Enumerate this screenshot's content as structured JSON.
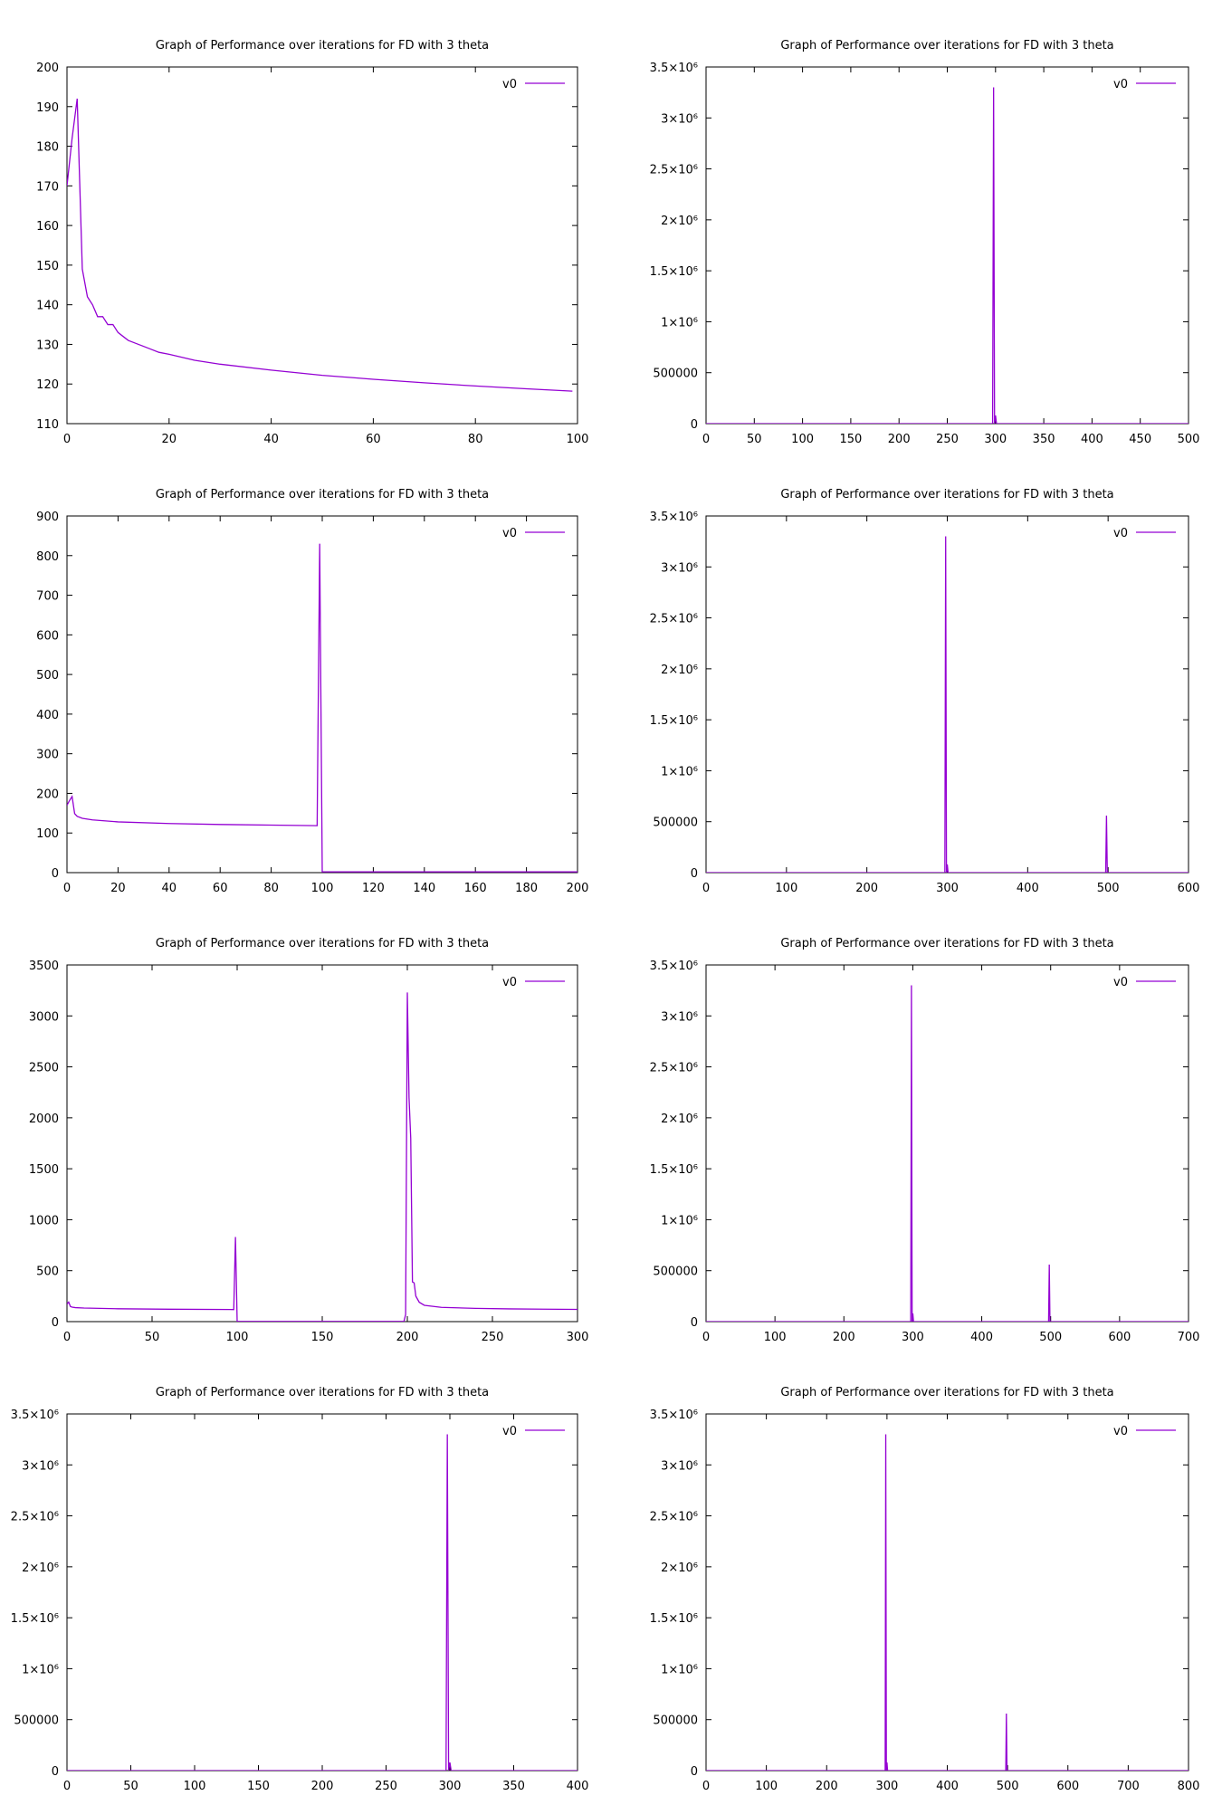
{
  "chart_data": [
    {
      "type": "line",
      "title": "Graph of Performance over iterations for FD with 3 theta",
      "xlabel": "",
      "ylabel": "",
      "xlim": [
        0,
        100
      ],
      "ylim": [
        110,
        200
      ],
      "xticks": [
        0,
        20,
        40,
        60,
        80,
        100
      ],
      "yticks": [
        110,
        120,
        130,
        140,
        150,
        160,
        170,
        180,
        190,
        200
      ],
      "ytick_labels": [
        "110",
        "120",
        "130",
        "140",
        "150",
        "160",
        "170",
        "180",
        "190",
        "200"
      ],
      "grid": false,
      "legend_position": "top-right",
      "series": [
        {
          "name": "v0",
          "color": "#9400d3",
          "x": [
            0,
            1,
            2,
            3,
            4,
            5,
            6,
            7,
            8,
            9,
            10,
            11,
            12,
            14,
            16,
            18,
            20,
            25,
            30,
            40,
            50,
            60,
            70,
            80,
            90,
            99
          ],
          "y": [
            170,
            182,
            192,
            149,
            142,
            140,
            137,
            137,
            135,
            135,
            133,
            132,
            131,
            130,
            129,
            128,
            127.5,
            126,
            125,
            123.5,
            122.2,
            121.2,
            120.3,
            119.5,
            118.8,
            118.2
          ]
        }
      ]
    },
    {
      "type": "line",
      "title": "Graph of Performance over iterations for FD with 3 theta",
      "xlabel": "",
      "ylabel": "",
      "xlim": [
        0,
        500
      ],
      "ylim": [
        0,
        3500000
      ],
      "xticks": [
        0,
        50,
        100,
        150,
        200,
        250,
        300,
        350,
        400,
        450,
        500
      ],
      "yticks": [
        0,
        500000,
        1000000,
        1500000,
        2000000,
        2500000,
        3000000,
        3500000
      ],
      "ytick_labels": [
        "0",
        "500000",
        "1×10⁶",
        "1.5×10⁶",
        "2×10⁶",
        "2.5×10⁶",
        "3×10⁶",
        "3.5×10⁶"
      ],
      "grid": false,
      "legend_position": "top-right",
      "series": [
        {
          "name": "v0",
          "color": "#9400d3",
          "x": [
            0,
            297,
            298,
            299,
            300,
            301,
            500
          ],
          "y": [
            200,
            200,
            3300000,
            500,
            80000,
            200,
            200
          ]
        }
      ]
    },
    {
      "type": "line",
      "title": "Graph of Performance over iterations for FD with 3 theta",
      "xlabel": "",
      "ylabel": "",
      "xlim": [
        0,
        200
      ],
      "ylim": [
        0,
        900
      ],
      "xticks": [
        0,
        20,
        40,
        60,
        80,
        100,
        120,
        140,
        160,
        180,
        200
      ],
      "yticks": [
        0,
        100,
        200,
        300,
        400,
        500,
        600,
        700,
        800,
        900
      ],
      "ytick_labels": [
        "0",
        "100",
        "200",
        "300",
        "400",
        "500",
        "600",
        "700",
        "800",
        "900"
      ],
      "grid": false,
      "legend_position": "top-right",
      "series": [
        {
          "name": "v0",
          "color": "#9400d3",
          "x": [
            0,
            1,
            2,
            3,
            4,
            6,
            10,
            20,
            40,
            60,
            80,
            98,
            99,
            100,
            200
          ],
          "y": [
            170,
            182,
            192,
            149,
            142,
            137,
            133,
            128,
            124,
            121.5,
            120,
            118.5,
            830,
            2,
            2
          ]
        }
      ]
    },
    {
      "type": "line",
      "title": "Graph of Performance over iterations for FD with 3 theta",
      "xlabel": "",
      "ylabel": "",
      "xlim": [
        0,
        600
      ],
      "ylim": [
        0,
        3500000
      ],
      "xticks": [
        0,
        100,
        200,
        300,
        400,
        500,
        600
      ],
      "yticks": [
        0,
        500000,
        1000000,
        1500000,
        2000000,
        2500000,
        3000000,
        3500000
      ],
      "ytick_labels": [
        "0",
        "500000",
        "1×10⁶",
        "1.5×10⁶",
        "2×10⁶",
        "2.5×10⁶",
        "3×10⁶",
        "3.5×10⁶"
      ],
      "grid": false,
      "legend_position": "top-right",
      "series": [
        {
          "name": "v0",
          "color": "#9400d3",
          "x": [
            0,
            297,
            298,
            299,
            300,
            301,
            497,
            498,
            499,
            500,
            600
          ],
          "y": [
            200,
            200,
            3300000,
            500,
            80000,
            200,
            200,
            560000,
            200,
            100,
            100
          ]
        }
      ]
    },
    {
      "type": "line",
      "title": "Graph of Performance over iterations for FD with 3 theta",
      "xlabel": "",
      "ylabel": "",
      "xlim": [
        0,
        300
      ],
      "ylim": [
        0,
        3500
      ],
      "xticks": [
        0,
        50,
        100,
        150,
        200,
        250,
        300
      ],
      "yticks": [
        0,
        500,
        1000,
        1500,
        2000,
        2500,
        3000,
        3500
      ],
      "ytick_labels": [
        "0",
        "500",
        "1000",
        "1500",
        "2000",
        "2500",
        "3000",
        "3500"
      ],
      "grid": false,
      "legend_position": "top-right",
      "series": [
        {
          "name": "v0",
          "color": "#9400d3",
          "x": [
            0,
            1,
            2,
            3,
            5,
            10,
            30,
            60,
            98,
            99,
            100,
            198,
            199,
            200,
            201,
            202,
            203,
            204,
            205,
            207,
            210,
            220,
            240,
            260,
            280,
            300
          ],
          "y": [
            170,
            192,
            149,
            142,
            137,
            133,
            126,
            121.5,
            118.5,
            830,
            2,
            2,
            70,
            3230,
            2200,
            1800,
            390,
            380,
            250,
            190,
            160,
            140,
            130,
            125,
            122,
            120
          ]
        }
      ]
    },
    {
      "type": "line",
      "title": "Graph of Performance over iterations for FD with 3 theta",
      "xlabel": "",
      "ylabel": "",
      "xlim": [
        0,
        700
      ],
      "ylim": [
        0,
        3500000
      ],
      "xticks": [
        0,
        100,
        200,
        300,
        400,
        500,
        600,
        700
      ],
      "yticks": [
        0,
        500000,
        1000000,
        1500000,
        2000000,
        2500000,
        3000000,
        3500000
      ],
      "ytick_labels": [
        "0",
        "500000",
        "1×10⁶",
        "1.5×10⁶",
        "2×10⁶",
        "2.5×10⁶",
        "3×10⁶",
        "3.5×10⁶"
      ],
      "grid": false,
      "legend_position": "top-right",
      "series": [
        {
          "name": "v0",
          "color": "#9400d3",
          "x": [
            0,
            297,
            298,
            299,
            300,
            301,
            497,
            498,
            499,
            500,
            700
          ],
          "y": [
            200,
            200,
            3300000,
            500,
            80000,
            200,
            200,
            560000,
            200,
            100,
            100
          ]
        }
      ]
    },
    {
      "type": "line",
      "title": "Graph of Performance over iterations for FD with 3 theta",
      "xlabel": "",
      "ylabel": "",
      "xlim": [
        0,
        400
      ],
      "ylim": [
        0,
        3500000
      ],
      "xticks": [
        0,
        50,
        100,
        150,
        200,
        250,
        300,
        350,
        400
      ],
      "yticks": [
        0,
        500000,
        1000000,
        1500000,
        2000000,
        2500000,
        3000000,
        3500000
      ],
      "ytick_labels": [
        "0",
        "500000",
        "1×10⁶",
        "1.5×10⁶",
        "2×10⁶",
        "2.5×10⁶",
        "3×10⁶",
        "3.5×10⁶"
      ],
      "grid": false,
      "legend_position": "top-right",
      "series": [
        {
          "name": "v0",
          "color": "#9400d3",
          "x": [
            0,
            297,
            298,
            299,
            300,
            301,
            400
          ],
          "y": [
            200,
            200,
            3300000,
            500,
            80000,
            200,
            200
          ]
        }
      ]
    },
    {
      "type": "line",
      "title": "Graph of Performance over iterations for FD with 3 theta",
      "xlabel": "",
      "ylabel": "",
      "xlim": [
        0,
        800
      ],
      "ylim": [
        0,
        3500000
      ],
      "xticks": [
        0,
        100,
        200,
        300,
        400,
        500,
        600,
        700,
        800
      ],
      "yticks": [
        0,
        500000,
        1000000,
        1500000,
        2000000,
        2500000,
        3000000,
        3500000
      ],
      "ytick_labels": [
        "0",
        "500000",
        "1×10⁶",
        "1.5×10⁶",
        "2×10⁶",
        "2.5×10⁶",
        "3×10⁶",
        "3.5×10⁶"
      ],
      "grid": false,
      "legend_position": "top-right",
      "series": [
        {
          "name": "v0",
          "color": "#9400d3",
          "x": [
            0,
            297,
            298,
            299,
            300,
            301,
            497,
            498,
            499,
            500,
            800
          ],
          "y": [
            200,
            200,
            3300000,
            500,
            80000,
            200,
            200,
            560000,
            200,
            100,
            100
          ]
        }
      ]
    }
  ]
}
